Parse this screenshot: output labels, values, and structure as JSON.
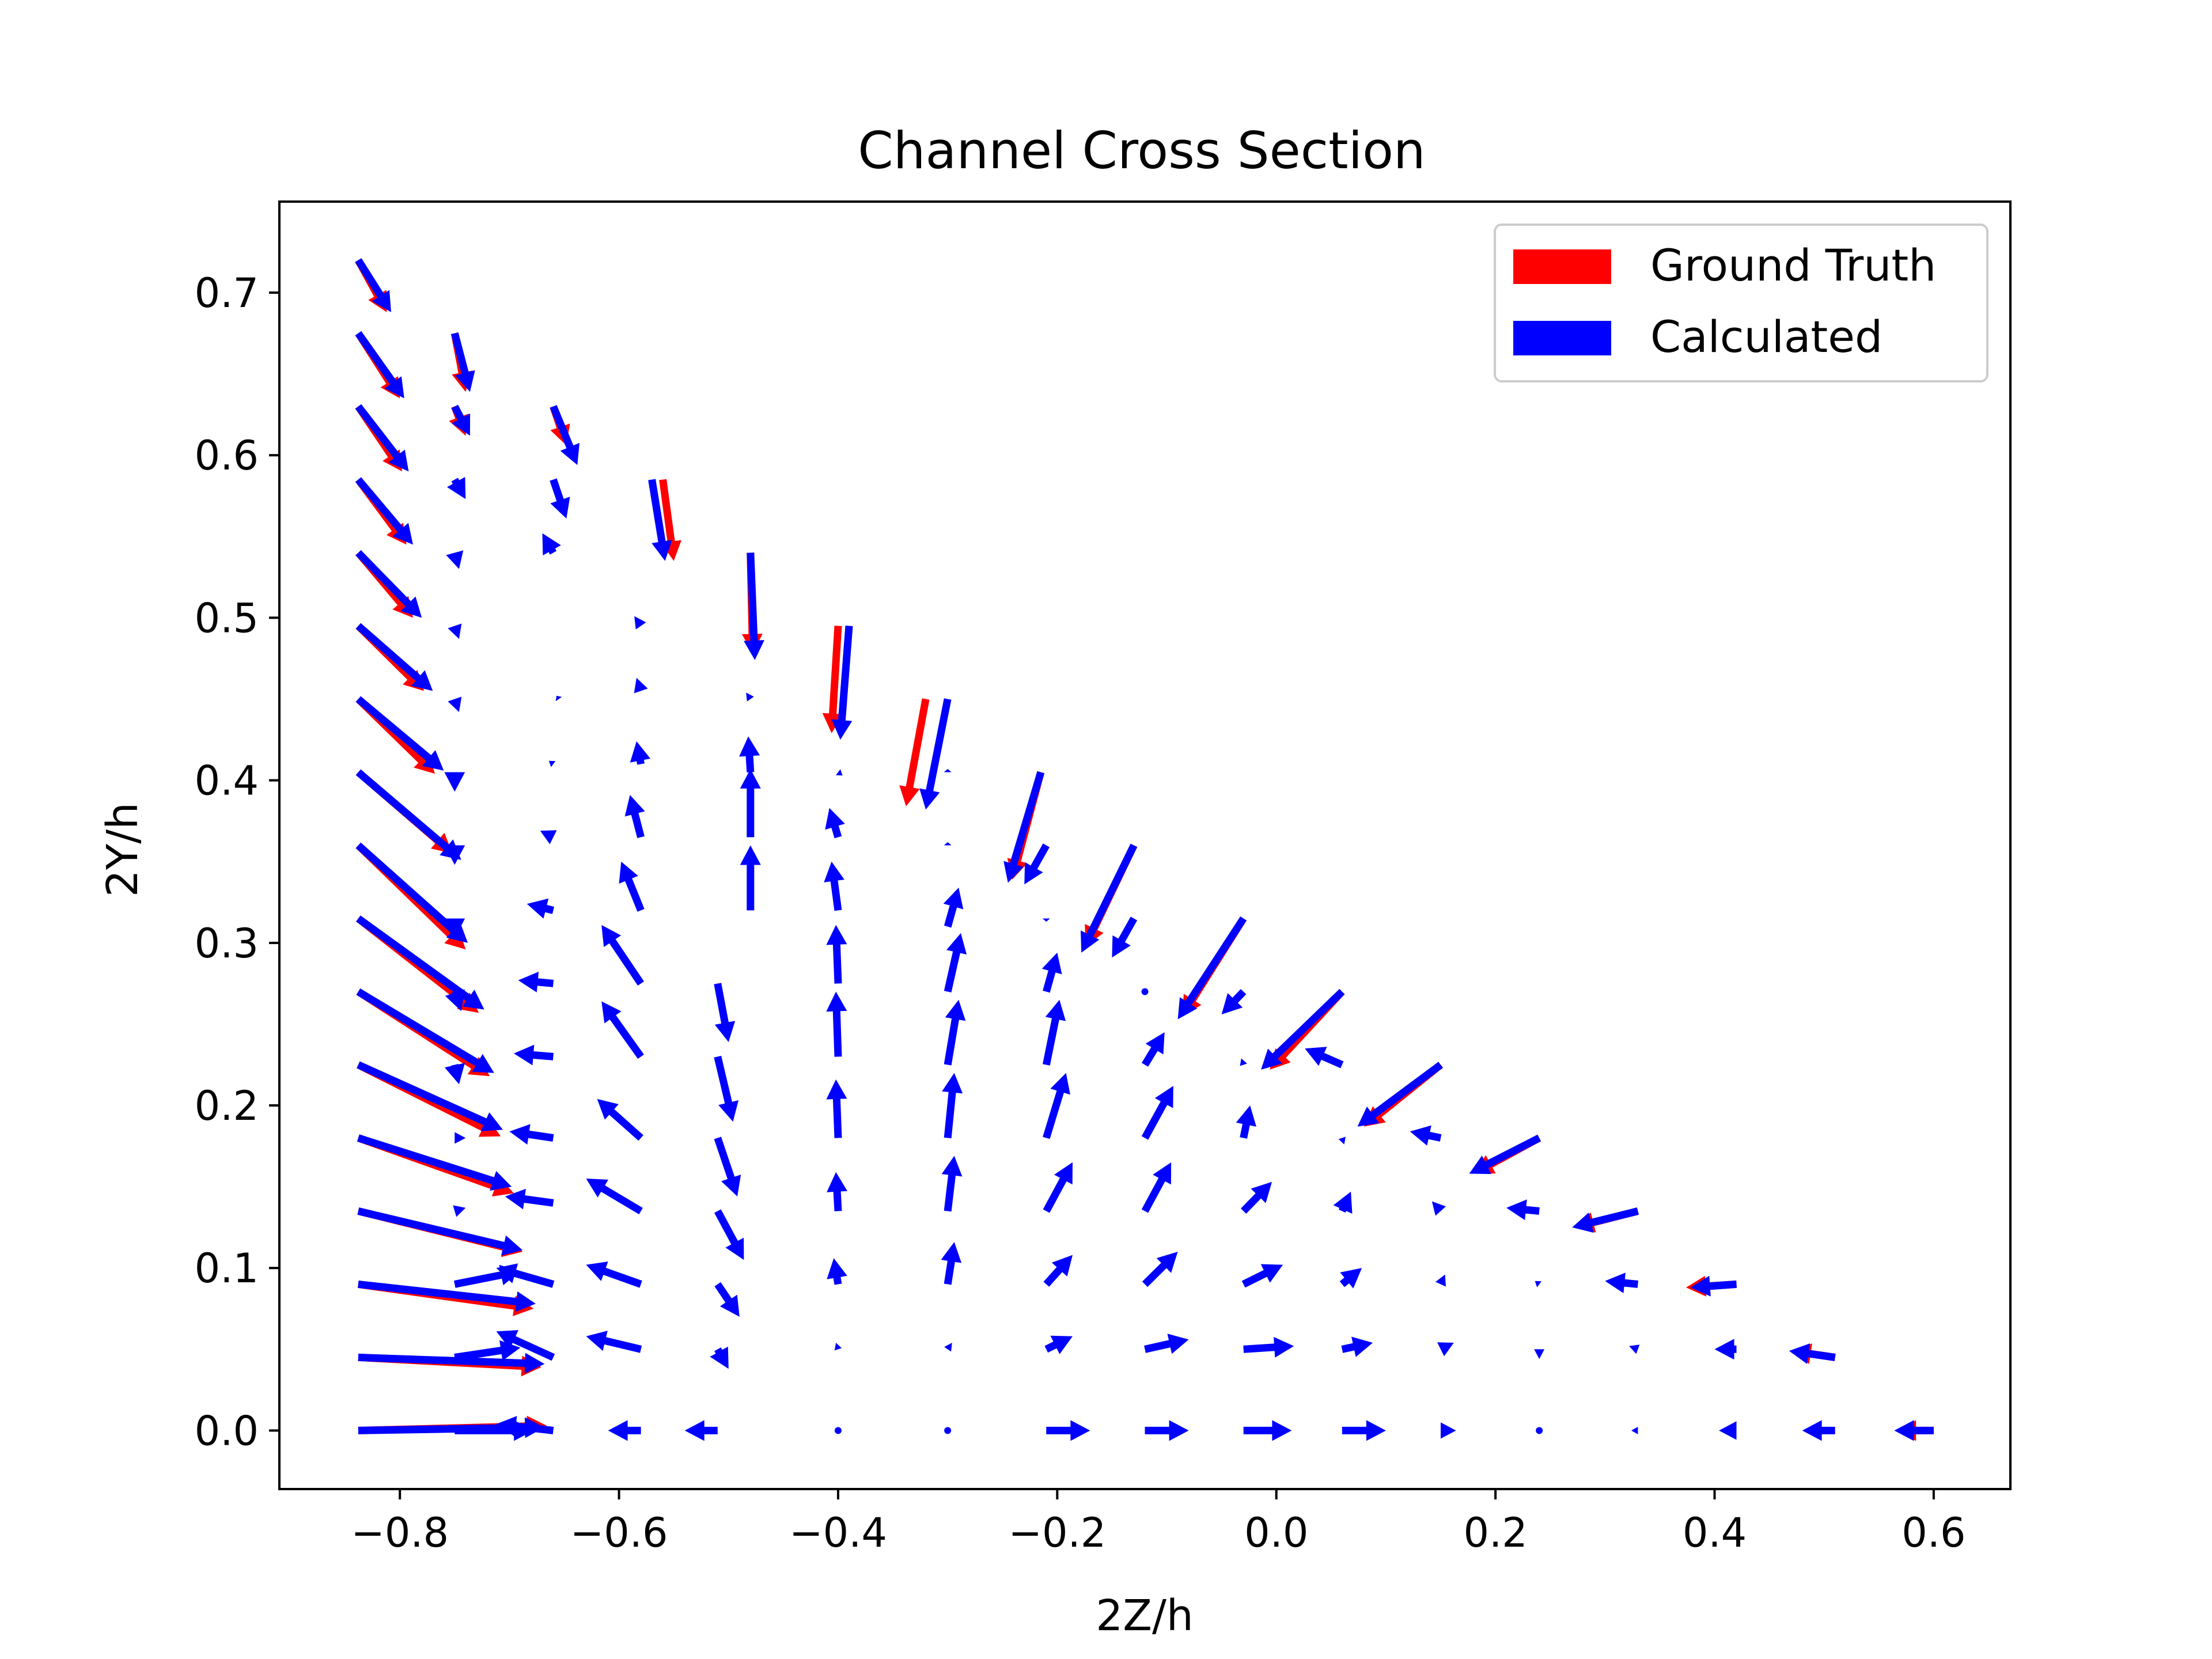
{
  "chart_data": {
    "type": "quiver",
    "title": "Channel Cross Section",
    "xlabel": "2Z/h",
    "ylabel": "2Y/h",
    "xlim": [
      -0.91,
      0.67
    ],
    "ylim": [
      -0.036,
      0.756
    ],
    "xticks": [
      -0.8,
      -0.6,
      -0.4,
      -0.2,
      0.0,
      0.2,
      0.4,
      0.6
    ],
    "xtick_labels": [
      "−0.8",
      "−0.6",
      "−0.4",
      "−0.2",
      "0.0",
      "0.2",
      "0.4",
      "0.6"
    ],
    "yticks": [
      0.0,
      0.1,
      0.2,
      0.3,
      0.4,
      0.5,
      0.6,
      0.7
    ],
    "ytick_labels": [
      "0.0",
      "0.1",
      "0.2",
      "0.3",
      "0.4",
      "0.5",
      "0.6",
      "0.7"
    ],
    "grid": false,
    "legend": {
      "placement": "top-right",
      "entries": [
        {
          "label": "Ground Truth",
          "color": "#ff0000"
        },
        {
          "label": "Calculated",
          "color": "#0000ff"
        }
      ]
    },
    "series": [
      {
        "name": "Ground Truth",
        "color": "#ff0000",
        "arrows": [
          [
            -0.838,
            0.0,
            0.172,
            0.003
          ],
          [
            -0.838,
            0.045,
            0.167,
            -0.006
          ],
          [
            -0.838,
            0.09,
            0.16,
            -0.015
          ],
          [
            -0.838,
            0.135,
            0.15,
            -0.025
          ],
          [
            -0.838,
            0.18,
            0.142,
            -0.034
          ],
          [
            -0.838,
            0.225,
            0.13,
            -0.044
          ],
          [
            -0.838,
            0.27,
            0.12,
            -0.052
          ],
          [
            -0.838,
            0.315,
            0.11,
            -0.058
          ],
          [
            -0.838,
            0.36,
            0.098,
            -0.064
          ],
          [
            -0.838,
            0.405,
            0.086,
            -0.05
          ],
          [
            -0.838,
            0.45,
            0.07,
            -0.046
          ],
          [
            -0.838,
            0.495,
            0.06,
            -0.04
          ],
          [
            -0.838,
            0.54,
            0.05,
            -0.04
          ],
          [
            -0.838,
            0.585,
            0.044,
            -0.04
          ],
          [
            -0.838,
            0.63,
            0.04,
            -0.04
          ],
          [
            -0.838,
            0.675,
            0.038,
            -0.04
          ],
          [
            -0.838,
            0.72,
            0.026,
            -0.032
          ],
          [
            -0.75,
            0.675,
            0.01,
            -0.036
          ],
          [
            -0.75,
            0.63,
            0.01,
            -0.018
          ],
          [
            -0.66,
            0.63,
            0.012,
            -0.024
          ],
          [
            -0.56,
            0.585,
            0.01,
            -0.05
          ],
          [
            -0.48,
            0.54,
            0.002,
            -0.062
          ],
          [
            -0.4,
            0.495,
            -0.006,
            -0.066
          ],
          [
            -0.32,
            0.45,
            -0.018,
            -0.066
          ],
          [
            -0.215,
            0.405,
            -0.026,
            -0.066
          ],
          [
            -0.13,
            0.36,
            -0.044,
            -0.062
          ],
          [
            -0.03,
            0.315,
            -0.056,
            -0.06
          ],
          [
            0.06,
            0.27,
            -0.066,
            -0.048
          ],
          [
            0.15,
            0.225,
            -0.07,
            -0.038
          ],
          [
            0.24,
            0.18,
            -0.06,
            -0.022
          ],
          [
            0.33,
            0.135,
            -0.058,
            -0.01
          ],
          [
            0.42,
            0.09,
            -0.046,
            -0.002
          ],
          [
            0.51,
            0.045,
            -0.04,
            0.004
          ],
          [
            0.6,
            0.0,
            -0.034,
            0.0
          ]
        ]
      },
      {
        "name": "Calculated",
        "color": "#0000ff",
        "arrows": [
          [
            -0.838,
            0.0,
            0.17,
            0.002
          ],
          [
            -0.838,
            0.045,
            0.17,
            -0.004
          ],
          [
            -0.838,
            0.09,
            0.162,
            -0.012
          ],
          [
            -0.838,
            0.135,
            0.15,
            -0.024
          ],
          [
            -0.838,
            0.18,
            0.14,
            -0.03
          ],
          [
            -0.838,
            0.225,
            0.132,
            -0.04
          ],
          [
            -0.838,
            0.27,
            0.124,
            -0.05
          ],
          [
            -0.838,
            0.315,
            0.115,
            -0.056
          ],
          [
            -0.838,
            0.36,
            0.1,
            -0.06
          ],
          [
            -0.838,
            0.405,
            0.094,
            -0.054
          ],
          [
            -0.838,
            0.45,
            0.078,
            -0.044
          ],
          [
            -0.838,
            0.495,
            0.068,
            -0.04
          ],
          [
            -0.838,
            0.54,
            0.058,
            -0.04
          ],
          [
            -0.838,
            0.585,
            0.05,
            -0.04
          ],
          [
            -0.838,
            0.63,
            0.046,
            -0.04
          ],
          [
            -0.838,
            0.675,
            0.042,
            -0.04
          ],
          [
            -0.838,
            0.72,
            0.03,
            -0.032
          ],
          [
            -0.75,
            0.0,
            0.072,
            0.0
          ],
          [
            -0.75,
            0.045,
            0.06,
            0.006
          ],
          [
            -0.75,
            0.09,
            0.06,
            0.008
          ],
          [
            -0.75,
            0.135,
            0.01,
            0.002
          ],
          [
            -0.75,
            0.18,
            0.01,
            0.0
          ],
          [
            -0.75,
            0.225,
            0.004,
            -0.012
          ],
          [
            -0.75,
            0.27,
            0.006,
            -0.012
          ],
          [
            -0.75,
            0.315,
            0.0,
            -0.012
          ],
          [
            -0.75,
            0.36,
            0.0,
            -0.012
          ],
          [
            -0.75,
            0.405,
            0.0,
            -0.012
          ],
          [
            -0.75,
            0.45,
            0.004,
            -0.008
          ],
          [
            -0.75,
            0.495,
            0.004,
            -0.008
          ],
          [
            -0.75,
            0.54,
            0.004,
            -0.01
          ],
          [
            -0.75,
            0.585,
            0.01,
            -0.012
          ],
          [
            -0.75,
            0.63,
            0.014,
            -0.018
          ],
          [
            -0.75,
            0.675,
            0.014,
            -0.036
          ],
          [
            -0.66,
            0.0,
            -0.052,
            0.004
          ],
          [
            -0.66,
            0.045,
            -0.052,
            0.016
          ],
          [
            -0.66,
            0.09,
            -0.052,
            0.01
          ],
          [
            -0.66,
            0.14,
            -0.044,
            0.004
          ],
          [
            -0.66,
            0.18,
            -0.04,
            0.004
          ],
          [
            -0.66,
            0.23,
            -0.036,
            0.002
          ],
          [
            -0.66,
            0.275,
            -0.032,
            0.002
          ],
          [
            -0.66,
            0.32,
            -0.024,
            0.004
          ],
          [
            -0.66,
            0.365,
            -0.012,
            0.004
          ],
          [
            -0.66,
            0.41,
            -0.004,
            0.002
          ],
          [
            -0.655,
            0.45,
            -0.002,
            0.002
          ],
          [
            -0.66,
            0.54,
            -0.01,
            0.012
          ],
          [
            -0.66,
            0.585,
            0.012,
            -0.024
          ],
          [
            -0.66,
            0.63,
            0.022,
            -0.036
          ],
          [
            -0.58,
            0.0,
            -0.03,
            0.0
          ],
          [
            -0.58,
            0.05,
            -0.05,
            0.008
          ],
          [
            -0.58,
            0.09,
            -0.05,
            0.012
          ],
          [
            -0.58,
            0.135,
            -0.05,
            0.02
          ],
          [
            -0.58,
            0.18,
            -0.04,
            0.024
          ],
          [
            -0.58,
            0.23,
            -0.036,
            0.034
          ],
          [
            -0.58,
            0.275,
            -0.036,
            0.036
          ],
          [
            -0.58,
            0.32,
            -0.018,
            0.03
          ],
          [
            -0.58,
            0.365,
            -0.01,
            0.026
          ],
          [
            -0.58,
            0.41,
            -0.004,
            0.014
          ],
          [
            -0.58,
            0.455,
            -0.004,
            0.008
          ],
          [
            -0.58,
            0.495,
            -0.006,
            0.006
          ],
          [
            -0.57,
            0.585,
            0.012,
            -0.05
          ],
          [
            -0.51,
            0.0,
            -0.03,
            0.0
          ],
          [
            -0.51,
            0.05,
            0.01,
            -0.012
          ],
          [
            -0.51,
            0.09,
            0.02,
            -0.02
          ],
          [
            -0.51,
            0.135,
            0.024,
            -0.03
          ],
          [
            -0.51,
            0.18,
            0.018,
            -0.036
          ],
          [
            -0.51,
            0.23,
            0.014,
            -0.04
          ],
          [
            -0.51,
            0.275,
            0.01,
            -0.036
          ],
          [
            -0.48,
            0.32,
            0.0,
            0.04
          ],
          [
            -0.48,
            0.365,
            0.0,
            0.042
          ],
          [
            -0.48,
            0.405,
            -0.002,
            0.022
          ],
          [
            -0.48,
            0.45,
            -0.004,
            0.004
          ],
          [
            -0.48,
            0.54,
            0.004,
            -0.066
          ],
          [
            -0.4,
            0.0,
            0.0,
            0.0
          ],
          [
            -0.4,
            0.05,
            -0.002,
            0.004
          ],
          [
            -0.4,
            0.09,
            -0.004,
            0.016
          ],
          [
            -0.4,
            0.135,
            -0.002,
            0.024
          ],
          [
            -0.4,
            0.18,
            -0.002,
            0.036
          ],
          [
            -0.4,
            0.23,
            -0.002,
            0.04
          ],
          [
            -0.4,
            0.275,
            -0.002,
            0.036
          ],
          [
            -0.4,
            0.32,
            -0.006,
            0.03
          ],
          [
            -0.4,
            0.365,
            -0.008,
            0.018
          ],
          [
            -0.4,
            0.405,
            0.004,
            -0.002
          ],
          [
            -0.39,
            0.495,
            -0.008,
            -0.07
          ],
          [
            -0.3,
            0.0,
            0.0,
            0.0
          ],
          [
            -0.3,
            0.05,
            0.004,
            0.004
          ],
          [
            -0.3,
            0.09,
            0.006,
            0.026
          ],
          [
            -0.3,
            0.135,
            0.006,
            0.034
          ],
          [
            -0.3,
            0.18,
            0.006,
            0.04
          ],
          [
            -0.3,
            0.225,
            0.01,
            0.04
          ],
          [
            -0.3,
            0.27,
            0.012,
            0.036
          ],
          [
            -0.3,
            0.31,
            0.01,
            0.024
          ],
          [
            -0.3,
            0.36,
            0.0,
            0.002
          ],
          [
            -0.3,
            0.405,
            0.0,
            0.002
          ],
          [
            -0.3,
            0.45,
            -0.02,
            -0.068
          ],
          [
            -0.21,
            0.0,
            0.04,
            0.0
          ],
          [
            -0.21,
            0.05,
            0.024,
            0.008
          ],
          [
            -0.21,
            0.09,
            0.024,
            0.018
          ],
          [
            -0.21,
            0.135,
            0.024,
            0.03
          ],
          [
            -0.21,
            0.18,
            0.018,
            0.04
          ],
          [
            -0.21,
            0.225,
            0.012,
            0.04
          ],
          [
            -0.21,
            0.27,
            0.01,
            0.024
          ],
          [
            -0.21,
            0.315,
            0.0,
            -0.002
          ],
          [
            -0.215,
            0.405,
            -0.03,
            -0.068
          ],
          [
            -0.21,
            0.36,
            -0.02,
            -0.024
          ],
          [
            -0.12,
            0.0,
            0.04,
            0.0
          ],
          [
            -0.12,
            0.05,
            0.04,
            0.006
          ],
          [
            -0.12,
            0.09,
            0.03,
            0.02
          ],
          [
            -0.12,
            0.135,
            0.024,
            0.03
          ],
          [
            -0.12,
            0.18,
            0.026,
            0.032
          ],
          [
            -0.12,
            0.225,
            0.018,
            0.02
          ],
          [
            -0.12,
            0.27,
            0.0,
            0.0
          ],
          [
            -0.13,
            0.315,
            -0.02,
            -0.024
          ],
          [
            -0.13,
            0.36,
            -0.048,
            -0.066
          ],
          [
            -0.03,
            0.0,
            0.044,
            0.0
          ],
          [
            -0.03,
            0.05,
            0.046,
            0.002
          ],
          [
            -0.03,
            0.09,
            0.036,
            0.012
          ],
          [
            -0.03,
            0.135,
            0.026,
            0.018
          ],
          [
            -0.03,
            0.18,
            0.006,
            0.02
          ],
          [
            -0.03,
            0.225,
            -0.002,
            0.004
          ],
          [
            -0.03,
            0.27,
            -0.02,
            -0.014
          ],
          [
            -0.03,
            0.315,
            -0.06,
            -0.062
          ],
          [
            0.06,
            0.0,
            0.04,
            0.0
          ],
          [
            0.06,
            0.05,
            0.028,
            0.004
          ],
          [
            0.06,
            0.09,
            0.018,
            0.01
          ],
          [
            0.06,
            0.135,
            0.008,
            0.012
          ],
          [
            0.06,
            0.18,
            0.002,
            -0.004
          ],
          [
            0.06,
            0.225,
            -0.034,
            0.01
          ],
          [
            0.06,
            0.27,
            -0.074,
            -0.048
          ],
          [
            0.15,
            0.0,
            0.014,
            0.0
          ],
          [
            0.15,
            0.05,
            0.012,
            0.004
          ],
          [
            0.15,
            0.09,
            0.004,
            0.006
          ],
          [
            0.15,
            0.135,
            -0.008,
            0.006
          ],
          [
            0.15,
            0.18,
            -0.028,
            0.004
          ],
          [
            0.15,
            0.225,
            -0.076,
            -0.038
          ],
          [
            0.24,
            0.0,
            0.0,
            0.0
          ],
          [
            0.24,
            0.05,
            0.0,
            -0.006
          ],
          [
            0.24,
            0.09,
            -0.004,
            0.002
          ],
          [
            0.24,
            0.135,
            -0.03,
            0.002
          ],
          [
            0.24,
            0.18,
            -0.064,
            -0.022
          ],
          [
            0.33,
            0.0,
            -0.006,
            0.0
          ],
          [
            0.33,
            0.05,
            -0.008,
            0.002
          ],
          [
            0.33,
            0.09,
            -0.03,
            0.002
          ],
          [
            0.33,
            0.135,
            -0.06,
            -0.01
          ],
          [
            0.42,
            0.0,
            -0.016,
            0.0
          ],
          [
            0.42,
            0.05,
            -0.02,
            0.0
          ],
          [
            0.42,
            0.09,
            -0.042,
            -0.002
          ],
          [
            0.51,
            0.0,
            -0.03,
            0.0
          ],
          [
            0.51,
            0.045,
            -0.042,
            0.004
          ],
          [
            0.6,
            0.0,
            -0.036,
            0.0
          ]
        ]
      }
    ]
  }
}
